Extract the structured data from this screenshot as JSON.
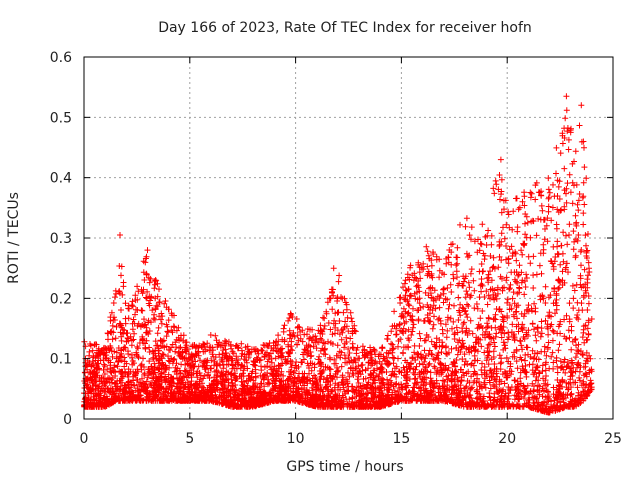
{
  "chart_data": {
    "type": "scatter",
    "title": "Day 166 of 2023, Rate Of TEC Index for receiver hofn",
    "xlabel": "GPS time / hours",
    "ylabel": "ROTI / TECUs",
    "xlim": [
      0,
      25
    ],
    "ylim": [
      0,
      0.6
    ],
    "x_ticks": [
      0,
      5,
      10,
      15,
      20,
      25
    ],
    "y_ticks": [
      0,
      0.1,
      0.2,
      0.3,
      0.4,
      0.5,
      0.6
    ],
    "x_tick_labels": [
      "0",
      "5",
      "10",
      "15",
      "20",
      "25"
    ],
    "y_tick_labels": [
      "0",
      "0.1",
      "0.2",
      "0.3",
      "0.4",
      "0.5",
      "0.6"
    ],
    "grid": true,
    "marker": "+",
    "color": "#ff0000",
    "x_data_extent": [
      0,
      24
    ],
    "envelope_hours": [
      0,
      1,
      1.5,
      1.7,
      2,
      3,
      3.3,
      4,
      5,
      6,
      7,
      8,
      9,
      10,
      11,
      12,
      13,
      14,
      15,
      16,
      17,
      18,
      19,
      19.6,
      20,
      21,
      22,
      22.8,
      23.2,
      23.6,
      24
    ],
    "envelope_upper": [
      0.13,
      0.12,
      0.22,
      0.3,
      0.18,
      0.28,
      0.24,
      0.19,
      0.12,
      0.14,
      0.13,
      0.12,
      0.13,
      0.19,
      0.14,
      0.25,
      0.13,
      0.11,
      0.22,
      0.3,
      0.26,
      0.35,
      0.32,
      0.43,
      0.35,
      0.39,
      0.4,
      0.53,
      0.45,
      0.52,
      0.2
    ],
    "envelope_lower": [
      0.02,
      0.02,
      0.03,
      0.03,
      0.03,
      0.03,
      0.03,
      0.03,
      0.03,
      0.03,
      0.02,
      0.02,
      0.03,
      0.03,
      0.02,
      0.02,
      0.02,
      0.02,
      0.03,
      0.03,
      0.03,
      0.02,
      0.02,
      0.02,
      0.02,
      0.02,
      0.01,
      0.02,
      0.02,
      0.03,
      0.05
    ],
    "notable_points": [
      {
        "x": 1.7,
        "y": 0.305
      },
      {
        "x": 3.0,
        "y": 0.28
      },
      {
        "x": 11.8,
        "y": 0.25
      },
      {
        "x": 19.7,
        "y": 0.43
      },
      {
        "x": 22.8,
        "y": 0.535
      },
      {
        "x": 23.5,
        "y": 0.52
      },
      {
        "x": 23.0,
        "y": 0.475
      },
      {
        "x": 23.6,
        "y": 0.46
      }
    ]
  }
}
